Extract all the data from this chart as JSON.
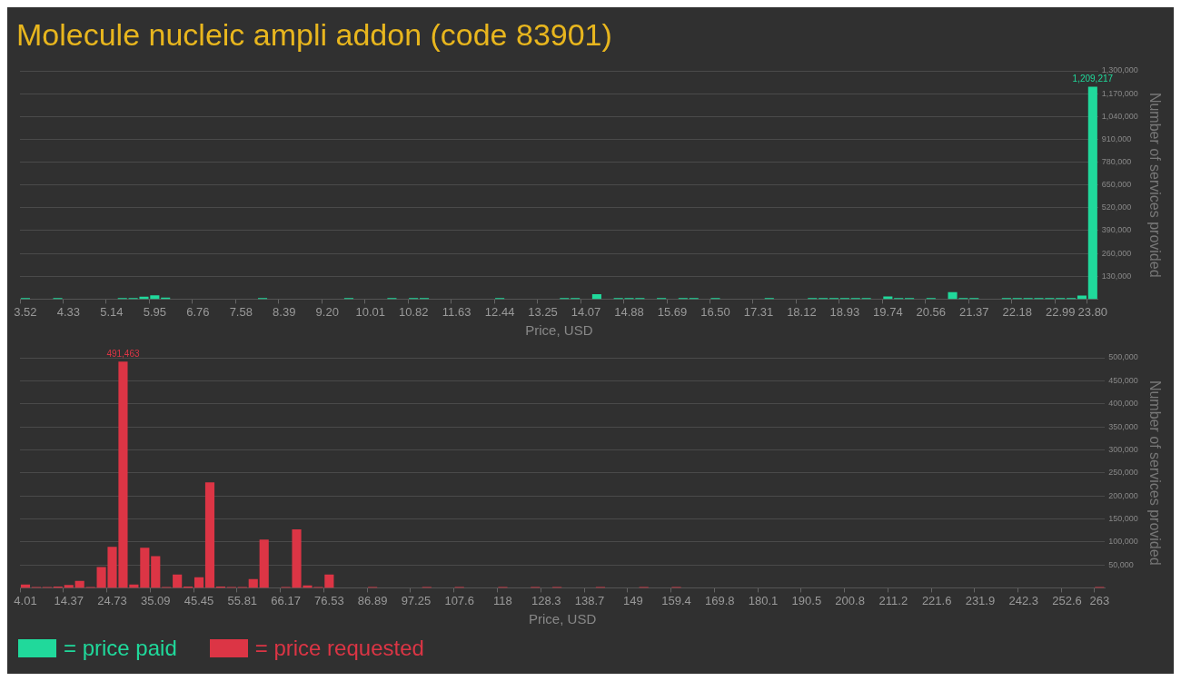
{
  "chart_data": [
    {
      "type": "bar",
      "title": "Molecule nucleic ampli addon (code 83901)",
      "xlabel": "Price, USD",
      "ylabel": "Number of services provided",
      "grid": "y",
      "legend": "bottom left",
      "categories": [
        "3.52",
        null,
        null,
        null,
        "4.33",
        null,
        null,
        null,
        "5.14",
        null,
        null,
        null,
        "5.95",
        null,
        null,
        null,
        "6.76",
        null,
        null,
        null,
        "7.58",
        null,
        null,
        null,
        "8.39",
        null,
        null,
        null,
        "9.20",
        null,
        null,
        null,
        "10.01",
        null,
        null,
        null,
        "10.82",
        null,
        null,
        null,
        "11.63",
        null,
        null,
        null,
        "12.44",
        null,
        null,
        null,
        "13.25",
        null,
        null,
        null,
        "14.07",
        null,
        null,
        null,
        "14.88",
        null,
        null,
        null,
        "15.69",
        null,
        null,
        null,
        "16.50",
        null,
        null,
        null,
        "17.31",
        null,
        null,
        null,
        "18.12",
        null,
        null,
        null,
        "18.93",
        null,
        null,
        null,
        "19.74",
        null,
        null,
        null,
        "20.56",
        null,
        null,
        null,
        "21.37",
        null,
        null,
        null,
        "22.18",
        null,
        null,
        null,
        "22.99",
        null,
        null,
        "23.80"
      ],
      "ylim": [
        0,
        1300000
      ],
      "yticks": [
        {
          "value": 130000,
          "label": "130,000"
        },
        {
          "value": 260000,
          "label": "260,000"
        },
        {
          "value": 390000,
          "label": "390,000"
        },
        {
          "value": 520000,
          "label": "520,000"
        },
        {
          "value": 650000,
          "label": "650,000"
        },
        {
          "value": 780000,
          "label": "780,000"
        },
        {
          "value": 910000,
          "label": "910,000"
        },
        {
          "value": 1040000,
          "label": "1,040,000"
        },
        {
          "value": 1170000,
          "label": "1,170,000"
        },
        {
          "value": 1300000,
          "label": "1,300,000"
        }
      ],
      "series": [
        {
          "name": "= price paid",
          "color": "#20d99b",
          "values": [
            6000,
            0,
            0,
            6000,
            0,
            0,
            0,
            0,
            0,
            6000,
            6000,
            14000,
            22000,
            8000,
            0,
            0,
            0,
            0,
            0,
            0,
            0,
            0,
            6000,
            0,
            0,
            0,
            0,
            0,
            0,
            0,
            6000,
            0,
            0,
            0,
            6000,
            0,
            6000,
            6000,
            0,
            0,
            0,
            0,
            0,
            0,
            6000,
            0,
            0,
            0,
            0,
            0,
            6000,
            6000,
            0,
            28000,
            0,
            6000,
            6000,
            6000,
            0,
            6000,
            0,
            6000,
            6000,
            0,
            6000,
            0,
            0,
            0,
            0,
            6000,
            0,
            0,
            0,
            6000,
            6000,
            6000,
            6000,
            6000,
            6000,
            0,
            15000,
            6000,
            6000,
            0,
            6000,
            0,
            40000,
            6000,
            6000,
            0,
            0,
            6000,
            6000,
            6000,
            6000,
            6000,
            6000,
            6000,
            20000,
            1209217
          ],
          "value_labels": [
            null,
            null,
            null,
            null,
            null,
            null,
            null,
            null,
            null,
            null,
            null,
            null,
            null,
            null,
            null,
            null,
            null,
            null,
            null,
            null,
            null,
            null,
            null,
            null,
            null,
            null,
            null,
            null,
            null,
            null,
            null,
            null,
            null,
            null,
            null,
            null,
            null,
            null,
            null,
            null,
            null,
            null,
            null,
            null,
            null,
            null,
            null,
            null,
            null,
            null,
            null,
            null,
            null,
            null,
            null,
            null,
            null,
            null,
            null,
            null,
            null,
            null,
            null,
            null,
            null,
            null,
            null,
            null,
            null,
            null,
            null,
            null,
            null,
            null,
            null,
            null,
            null,
            null,
            null,
            null,
            null,
            null,
            null,
            null,
            null,
            null,
            null,
            null,
            null,
            null,
            null,
            null,
            null,
            null,
            null,
            null,
            null,
            null,
            null,
            "1,209,217"
          ]
        }
      ]
    },
    {
      "type": "bar",
      "xlabel": "Price, USD",
      "ylabel": "Number of services provided",
      "grid": "y",
      "legend": "bottom left",
      "categories": [
        "4.01",
        null,
        null,
        null,
        "14.37",
        null,
        null,
        null,
        "24.73",
        null,
        null,
        null,
        "35.09",
        null,
        null,
        null,
        "45.45",
        null,
        null,
        null,
        "55.81",
        null,
        null,
        null,
        "66.17",
        null,
        null,
        null,
        "76.53",
        null,
        null,
        null,
        "86.89",
        null,
        null,
        null,
        "97.25",
        null,
        null,
        null,
        "107.6",
        null,
        null,
        null,
        "118",
        null,
        null,
        null,
        "128.3",
        null,
        null,
        null,
        "138.7",
        null,
        null,
        null,
        "149",
        null,
        null,
        null,
        "159.4",
        null,
        null,
        null,
        "169.8",
        null,
        null,
        null,
        "180.1",
        null,
        null,
        null,
        "190.5",
        null,
        null,
        null,
        "200.8",
        null,
        null,
        null,
        "211.2",
        null,
        null,
        null,
        "221.6",
        null,
        null,
        null,
        "231.9",
        null,
        null,
        null,
        "242.3",
        null,
        null,
        null,
        "252.6",
        null,
        null,
        "263"
      ],
      "ylim": [
        0,
        500000
      ],
      "yticks": [
        {
          "value": 50000,
          "label": "50,000"
        },
        {
          "value": 100000,
          "label": "100,000"
        },
        {
          "value": 150000,
          "label": "150,000"
        },
        {
          "value": 200000,
          "label": "200,000"
        },
        {
          "value": 250000,
          "label": "250,000"
        },
        {
          "value": 300000,
          "label": "300,000"
        },
        {
          "value": 350000,
          "label": "350,000"
        },
        {
          "value": 400000,
          "label": "400,000"
        },
        {
          "value": 450000,
          "label": "450,000"
        },
        {
          "value": 500000,
          "label": "500,000"
        }
      ],
      "series": [
        {
          "name": "= price requested",
          "color": "#dc3545",
          "values": [
            7000,
            2000,
            2000,
            3000,
            6000,
            15000,
            2000,
            45000,
            89000,
            491463,
            7000,
            87000,
            69000,
            2000,
            29000,
            3000,
            23000,
            229000,
            3000,
            2000,
            2000,
            19000,
            105000,
            0,
            2000,
            127000,
            5000,
            2000,
            29000,
            0,
            0,
            0,
            2000,
            0,
            0,
            0,
            0,
            2000,
            0,
            0,
            2000,
            0,
            0,
            0,
            2000,
            0,
            0,
            2000,
            0,
            2000,
            0,
            0,
            0,
            2000,
            0,
            0,
            0,
            2000,
            0,
            0,
            2000,
            0,
            0,
            0,
            0,
            0,
            0,
            0,
            0,
            0,
            0,
            0,
            0,
            0,
            0,
            0,
            0,
            0,
            0,
            0,
            0,
            0,
            0,
            0,
            0,
            0,
            0,
            0,
            0,
            0,
            0,
            0,
            0,
            0,
            0,
            0,
            0,
            0,
            0,
            2000
          ],
          "value_labels": [
            null,
            null,
            null,
            null,
            null,
            null,
            null,
            null,
            null,
            "491,463",
            null,
            null,
            null,
            null,
            null,
            null,
            null,
            null,
            null,
            null,
            null,
            null,
            null,
            null,
            null,
            null,
            null,
            null,
            null,
            null,
            null,
            null,
            null,
            null,
            null,
            null,
            null,
            null,
            null,
            null,
            null,
            null,
            null,
            null,
            null,
            null,
            null,
            null,
            null,
            null,
            null,
            null,
            null,
            null,
            null,
            null,
            null,
            null,
            null,
            null,
            null,
            null,
            null,
            null,
            null,
            null,
            null,
            null,
            null,
            null,
            null,
            null,
            null,
            null,
            null,
            null,
            null,
            null,
            null,
            null,
            null,
            null,
            null,
            null,
            null,
            null,
            null,
            null,
            null,
            null,
            null,
            null,
            null,
            null,
            null,
            null,
            null,
            null,
            null,
            null
          ]
        }
      ]
    }
  ]
}
